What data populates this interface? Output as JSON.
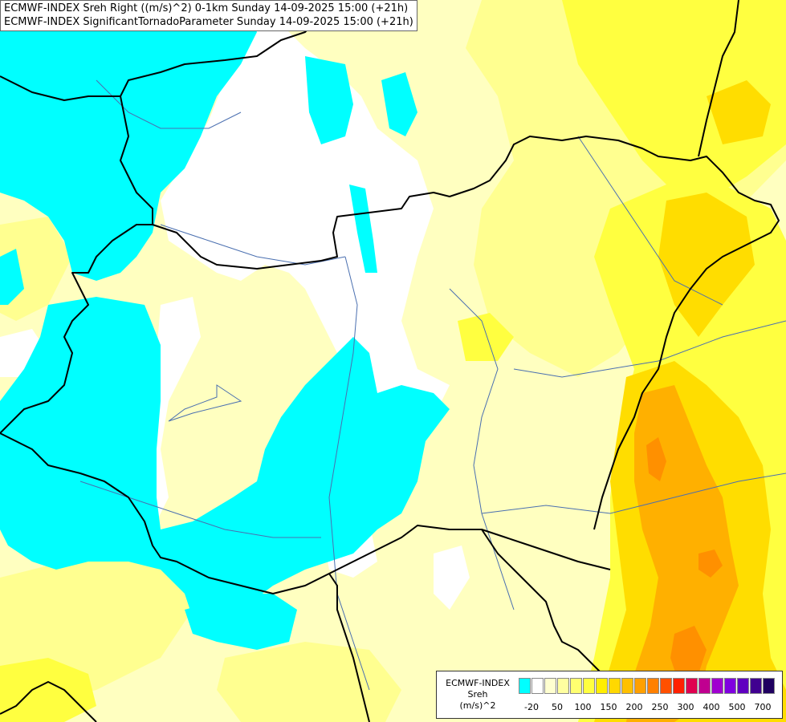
{
  "title": {
    "line1": "ECMWF-INDEX Sreh Right ((m/s)^2) 0-1km Sunday 14-09-2025 15:00 (+21h)",
    "line2": "ECMWF-INDEX SignificantTornadoParameter Sunday 14-09-2025 15:00 (+21h)"
  },
  "legend": {
    "model": "ECMWF-INDEX",
    "param": "Sreh",
    "unit": "(m/s)^2",
    "colors": [
      "#00ffff",
      "#ffffff",
      "#ffffd0",
      "#ffffa0",
      "#ffff70",
      "#ffff40",
      "#ffee00",
      "#ffd800",
      "#ffc000",
      "#ffa000",
      "#ff8000",
      "#ff5000",
      "#ff2000",
      "#e00050",
      "#c00090",
      "#a000d0",
      "#8000e0",
      "#6000c0",
      "#400090",
      "#200060"
    ],
    "ticks": [
      "-20",
      "50",
      "100",
      "150",
      "200",
      "250",
      "300",
      "400",
      "500",
      "700"
    ]
  },
  "colors": {
    "cyan": "#00ffff",
    "white": "#ffffff",
    "pale_yellow": "#ffffc0",
    "light_yellow": "#ffff90",
    "yellow": "#ffff40",
    "gold": "#ffdd00",
    "orange": "#ffb000",
    "dark_orange": "#ff9000",
    "border": "#000000",
    "river": "#4a6fb0"
  }
}
